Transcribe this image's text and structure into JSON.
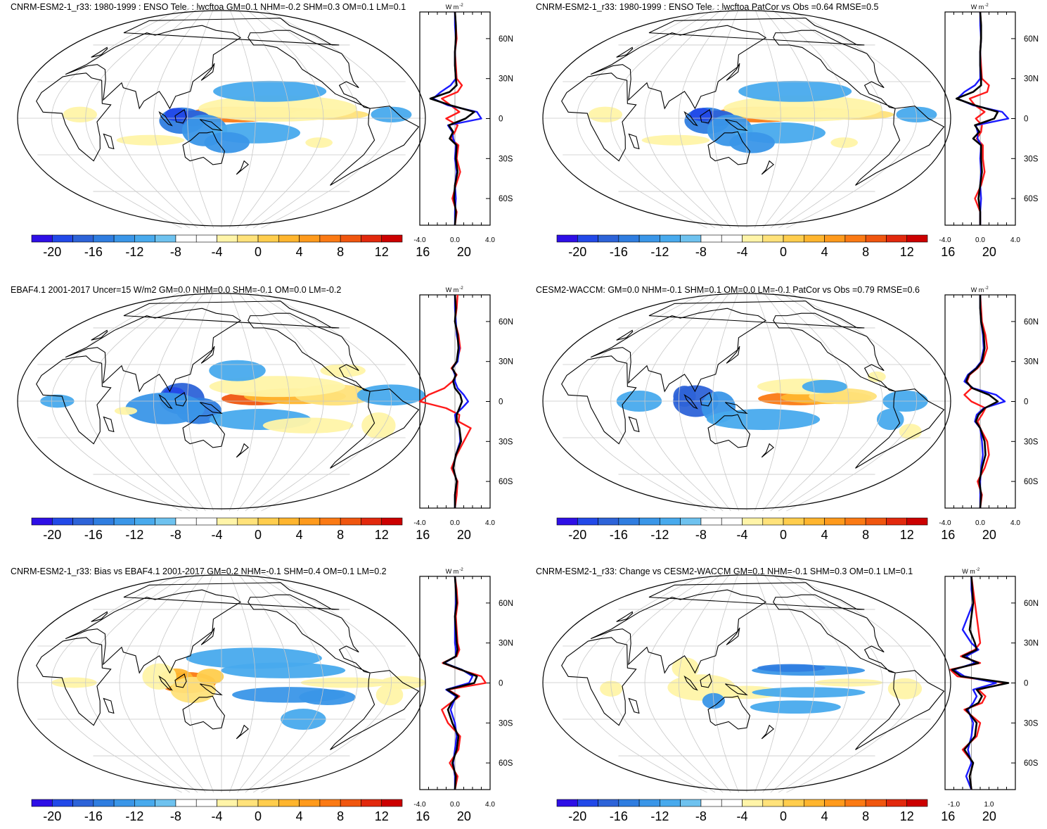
{
  "colorbar": {
    "colors": [
      "#2e0fe6",
      "#2249e8",
      "#2d63d8",
      "#2f7de0",
      "#3a96e8",
      "#48aaed",
      "#6ec2ef",
      "#ffffff",
      "#ffffff",
      "#fff4a8",
      "#ffe27a",
      "#ffcd4d",
      "#ffb52e",
      "#ff9a1c",
      "#fb7a14",
      "#f0560f",
      "#e2290d",
      "#cc0000"
    ],
    "labels": [
      "-20",
      "-16",
      "-12",
      "-8",
      "-4",
      "0",
      "4",
      "8",
      "12",
      "16",
      "20"
    ]
  },
  "zonal_colors": {
    "red": "#ff1a1a",
    "blue": "#1a1aff",
    "black": "#000000"
  },
  "zonal_unit": "W m",
  "zonal_unit_exp": "-2",
  "lat_labels": [
    "60N",
    "30N",
    "0",
    "30S",
    "60S"
  ],
  "chart_data": [
    {
      "type": "map",
      "title": "CNRM-ESM2-1_r33: 1980-1999 : ENSO Tele. : lwcftoa GM=0.1 NHM=-0.2 SHM=0.3 OM=0.1 LM=0.1",
      "zonal_xticks": [
        "-4.0",
        "0.0",
        "4.0"
      ],
      "zonal_xlim": [
        -4,
        4
      ],
      "pattern": "model",
      "zonal": {
        "lat": [
          80,
          70,
          60,
          50,
          40,
          30,
          25,
          20,
          15,
          10,
          5,
          0,
          -5,
          -10,
          -15,
          -20,
          -30,
          -40,
          -50,
          -60,
          -70,
          -80
        ],
        "red": [
          0,
          0.1,
          0.2,
          0,
          0.1,
          0.2,
          0.8,
          0.3,
          -1.5,
          -0.5,
          0.5,
          -1,
          0.3,
          0,
          -0.5,
          0.4,
          0.2,
          0.6,
          0.1,
          -0.3,
          0.2,
          0
        ],
        "blue": [
          0,
          0,
          0.1,
          0,
          0,
          0.1,
          -0.5,
          -1.6,
          -2.5,
          -0.8,
          2.5,
          3,
          -0.8,
          -0.3,
          -0.2,
          0.1,
          0,
          0.2,
          0,
          0.1,
          0,
          0
        ],
        "black": [
          0,
          0.1,
          0.1,
          0,
          0,
          0.1,
          0.2,
          -0.6,
          -2.8,
          -0.5,
          2.2,
          1.2,
          -0.7,
          -0.2,
          -0.6,
          0.2,
          0.1,
          0.3,
          0,
          -0.1,
          0.1,
          0
        ]
      }
    },
    {
      "type": "map",
      "title": "CNRM-ESM2-1_r33: 1980-1999 : ENSO Tele. : lwcftoa PatCor vs Obs =0.64 RMSE=0.5",
      "zonal_xticks": [
        "-4.0",
        "0.0",
        "4.0"
      ],
      "zonal_xlim": [
        -4,
        4
      ],
      "pattern": "model",
      "zonal": {
        "lat": [
          80,
          70,
          60,
          50,
          40,
          30,
          25,
          20,
          15,
          10,
          5,
          0,
          -5,
          -10,
          -15,
          -20,
          -30,
          -40,
          -50,
          -60,
          -70,
          -80
        ],
        "red": [
          0,
          0.1,
          0.1,
          0,
          0.1,
          0.2,
          1,
          0.8,
          -1.2,
          -0.6,
          0.5,
          -0.5,
          0.2,
          0.1,
          -0.4,
          0.3,
          0.3,
          0.5,
          0.1,
          -0.6,
          0,
          0
        ],
        "blue": [
          0,
          0,
          0.1,
          0,
          0,
          0,
          -0.6,
          -1.8,
          -2.6,
          -0.8,
          2.5,
          3.2,
          -0.5,
          -0.3,
          -0.3,
          0.1,
          0,
          0.1,
          0,
          0.1,
          0,
          0
        ],
        "black": [
          0,
          0.1,
          0.1,
          0,
          0,
          0.1,
          0.1,
          -0.8,
          -2.7,
          -0.6,
          2,
          1.6,
          -0.6,
          -0.1,
          -0.8,
          0.1,
          0.1,
          0.2,
          0,
          -0.2,
          0,
          0
        ]
      }
    },
    {
      "type": "map",
      "title": "EBAF4.1 2001-2017 Uncer=15 W/m2 GM=0.0 NHM=0.0 SHM=-0.1 OM=0.0 LM=-0.2",
      "zonal_xticks": [
        "-4.0",
        "0.0",
        "4.0"
      ],
      "zonal_xlim": [
        -4,
        4
      ],
      "pattern": "obs",
      "zonal": {
        "lat": [
          80,
          70,
          60,
          50,
          40,
          30,
          25,
          20,
          15,
          10,
          5,
          0,
          -5,
          -10,
          -15,
          -20,
          -30,
          -40,
          -50,
          -60,
          -70,
          -80
        ],
        "red": [
          0.3,
          0.2,
          0,
          0.4,
          0.6,
          0.2,
          -0.4,
          0.2,
          -0.3,
          -1.2,
          -3,
          -4,
          -1,
          0.5,
          0.4,
          1.8,
          1,
          0.2,
          -0.4,
          0.3,
          0.2,
          0
        ],
        "blue": [
          0,
          0,
          0.1,
          0.2,
          0.5,
          0.3,
          -0.3,
          0,
          0,
          0.3,
          1,
          1.5,
          0.8,
          0,
          0.1,
          0.5,
          0.6,
          0.1,
          -0.2,
          0.2,
          0,
          0
        ],
        "black": [
          0,
          0.1,
          0,
          0.3,
          0.4,
          0.2,
          -0.3,
          0.1,
          -0.2,
          0,
          0.6,
          0.8,
          0.5,
          0.2,
          0.2,
          0.5,
          0.7,
          0.1,
          -0.2,
          0.2,
          0,
          0
        ]
      }
    },
    {
      "type": "map",
      "title": "CESM2-WACCM: GM=0.0 NHM=-0.1 SHM=0.1 OM=0.0 LM=-0.1 PatCor vs Obs =0.79 RMSE=0.6",
      "zonal_xticks": [
        "-4.0",
        "0.0",
        "4.0"
      ],
      "zonal_xlim": [
        -4,
        4
      ],
      "pattern": "cesm",
      "zonal": {
        "lat": [
          80,
          70,
          60,
          50,
          40,
          30,
          25,
          20,
          15,
          10,
          5,
          0,
          -5,
          -10,
          -15,
          -20,
          -30,
          -40,
          -50,
          -60,
          -70,
          -80
        ],
        "red": [
          0,
          0.1,
          0.2,
          0.6,
          0.8,
          0.3,
          -0.3,
          -1.2,
          -1.5,
          -1,
          -1.8,
          -1,
          0.6,
          0.2,
          -0.3,
          0,
          0.8,
          1,
          0.5,
          -0.3,
          0.2,
          0
        ],
        "blue": [
          0,
          0,
          0.1,
          0.3,
          0.4,
          0.1,
          -0.5,
          -1.4,
          -1.8,
          -0.8,
          1.8,
          2.8,
          0.4,
          -0.4,
          -0.6,
          0,
          0.2,
          0.3,
          0.1,
          0,
          0,
          0
        ],
        "black": [
          0,
          0,
          0.1,
          0.4,
          0.5,
          0.2,
          -0.4,
          -1.3,
          -1.6,
          -0.9,
          1,
          2,
          0.5,
          -0.2,
          -0.5,
          0,
          0.5,
          0.6,
          0.2,
          -0.1,
          0.1,
          0
        ]
      }
    },
    {
      "type": "map",
      "title": "CNRM-ESM2-1_r33: Bias vs EBAF4.1 2001-2017 GM=0.2 NHM=-0.1 SHM=0.4 OM=0.1 LM=0.2",
      "zonal_xticks": [
        "-4.0",
        "0.0",
        "4.0"
      ],
      "zonal_xlim": [
        -4,
        4
      ],
      "pattern": "bias",
      "zonal": {
        "lat": [
          80,
          70,
          60,
          50,
          40,
          30,
          25,
          20,
          15,
          10,
          5,
          0,
          -5,
          -10,
          -15,
          -20,
          -30,
          -40,
          -50,
          -60,
          -70,
          -80
        ],
        "red": [
          0,
          0.2,
          0.3,
          0.1,
          0.2,
          0.3,
          0.5,
          0.2,
          -1.4,
          0.6,
          3,
          3.5,
          -0.8,
          0.5,
          -0.5,
          -1.5,
          -0.8,
          0.6,
          0.4,
          -0.6,
          0.3,
          0
        ],
        "blue": [
          0,
          0.1,
          0.1,
          0,
          0,
          0,
          0.1,
          0.1,
          -1.2,
          0.8,
          2,
          1.6,
          -1,
          0.1,
          -0.2,
          -0.5,
          0,
          0.2,
          0,
          -0.2,
          0,
          0
        ],
        "black": [
          0,
          0.1,
          0.2,
          0,
          0.1,
          0.2,
          0.3,
          0.1,
          -1.3,
          0.7,
          2.5,
          2.2,
          -0.9,
          0.3,
          -0.4,
          -0.8,
          -0.3,
          0.4,
          0.2,
          -0.3,
          0.1,
          0
        ]
      }
    },
    {
      "type": "map",
      "title": "CNRM-ESM2-1_r33: Change vs CESM2-WACCM GM=0.1 NHM=-0.1 SHM=0.3 OM=0.1 LM=0.1",
      "zonal_xticks": [
        "-1.0",
        "1.0"
      ],
      "zonal_xlim": [
        -1.5,
        2.5
      ],
      "pattern": "change",
      "zonal": {
        "lat": [
          80,
          70,
          60,
          50,
          40,
          30,
          25,
          20,
          15,
          10,
          5,
          0,
          -5,
          -10,
          -15,
          -20,
          -30,
          -40,
          -50,
          -60,
          -70,
          -80
        ],
        "red": [
          0,
          0.1,
          0.2,
          0.3,
          0.4,
          0.5,
          0.2,
          -0.6,
          0.5,
          -1.2,
          -0.8,
          2,
          0.4,
          0.8,
          0.6,
          -0.4,
          0.5,
          0.3,
          -0.5,
          0.1,
          -0.1,
          0
        ],
        "blue": [
          0,
          0,
          0.1,
          -0.2,
          -0.5,
          0,
          0.4,
          -0.3,
          0.2,
          -1,
          -0.4,
          1.4,
          0.1,
          0.3,
          0.1,
          -0.2,
          0.1,
          0,
          -0.2,
          0,
          -0.3,
          0
        ],
        "black": [
          0,
          0.05,
          0.1,
          0,
          -0.1,
          0.2,
          0.3,
          -0.5,
          0.4,
          -1.1,
          -0.6,
          2.1,
          0.3,
          0.6,
          0.4,
          -0.3,
          0.3,
          0.2,
          -0.4,
          0.1,
          -0.1,
          0
        ]
      }
    }
  ]
}
